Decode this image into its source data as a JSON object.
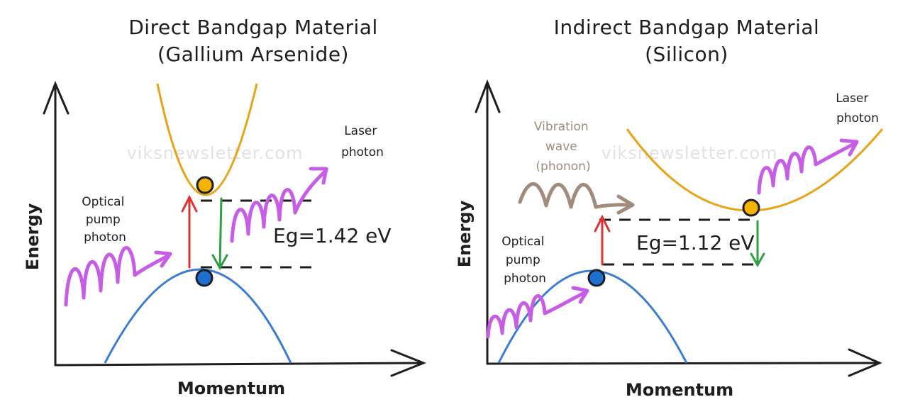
{
  "colors": {
    "ink": "#1e1e1e",
    "valence_band": "#3a7bd5",
    "conduction_band": "#e8a317",
    "pump_photon": "#c75ce6",
    "absorption_arrow": "#e03131",
    "emission_arrow": "#2f9e44",
    "phonon": "#a08b7d",
    "electron": "#f5b301",
    "hole": "#1f6fd1",
    "watermark": "#e2e2e2"
  },
  "left": {
    "title_line1": "Direct Bandgap Material",
    "title_line2": "(Gallium Arsenide)",
    "y_axis_label": "Energy",
    "x_axis_label": "Momentum",
    "pump_label": [
      "Optical",
      "pump",
      "photon"
    ],
    "laser_label": [
      "Laser",
      "photon"
    ],
    "bandgap_label": "Eg=1.42 eV",
    "watermark": "viksnewsletter.com"
  },
  "right": {
    "title_line1": "Indirect Bandgap Material",
    "title_line2": "(Silicon)",
    "y_axis_label": "Energy",
    "x_axis_label": "Momentum",
    "pump_label": [
      "Optical",
      "pump",
      "photon"
    ],
    "laser_label": [
      "Laser",
      "photon"
    ],
    "phonon_label": [
      "Vibration",
      "wave",
      "(phonon)"
    ],
    "bandgap_label": "Eg=1.12 eV",
    "watermark": "viksnewsletter.com"
  }
}
